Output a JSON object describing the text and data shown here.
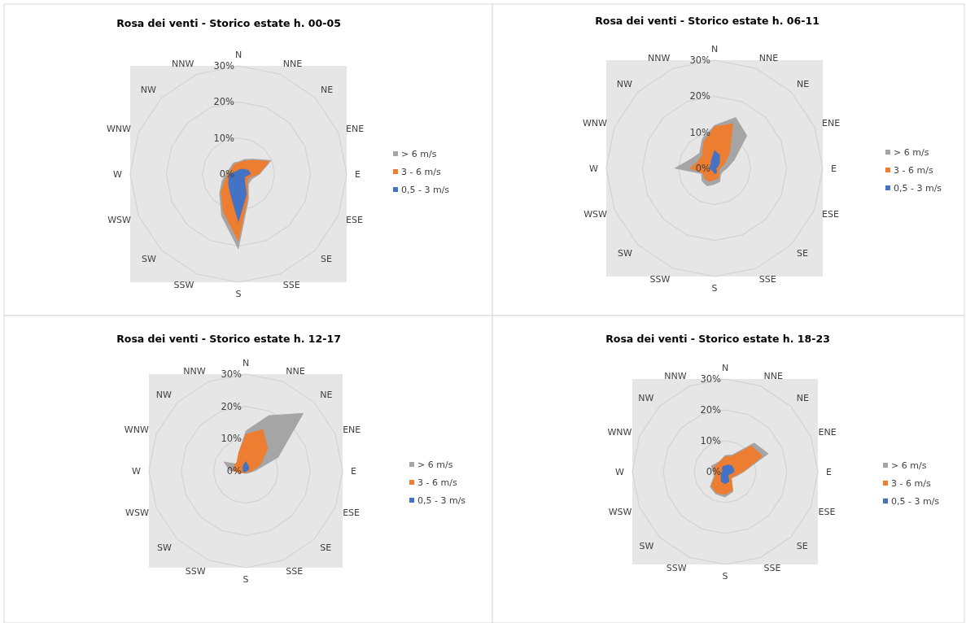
{
  "chart_data": [
    {
      "type": "radar",
      "title": "Rosa dei venti - Storico estate h. 00-05",
      "categories": [
        "N",
        "NNE",
        "NE",
        "ENE",
        "E",
        "ESE",
        "SE",
        "SSE",
        "S",
        "SSW",
        "SW",
        "WSW",
        "W",
        "WNW",
        "NW",
        "NNW"
      ],
      "ylim": [
        0,
        30
      ],
      "yticks": [
        {
          "value": 0,
          "label": "0%"
        },
        {
          "value": 10,
          "label": "10%"
        },
        {
          "value": 20,
          "label": "20%"
        },
        {
          "value": 30,
          "label": "30%"
        }
      ],
      "grid": true,
      "legend": "right",
      "series": [
        {
          "name": "> 6 m/s",
          "color": "#a5a5a5",
          "values": [
            3.5,
            4.5,
            6,
            10,
            6,
            4,
            4,
            7.5,
            21,
            12.5,
            7.5,
            5,
            3.5,
            3,
            3,
            3.5
          ]
        },
        {
          "name": "3 - 6 m/s",
          "color": "#ed7d31",
          "values": [
            3.2,
            4,
            5.5,
            9.4,
            5.7,
            3,
            3.5,
            7,
            18.8,
            11.3,
            7,
            4,
            3,
            2.5,
            2.5,
            3
          ]
        },
        {
          "name": "0,5 - 3 m/s",
          "color": "#4472c4",
          "values": [
            1.2,
            1.5,
            2,
            3,
            3.5,
            2,
            2.5,
            6,
            13.5,
            6,
            4,
            3,
            2.5,
            1.5,
            1,
            1
          ]
        }
      ]
    },
    {
      "type": "radar",
      "title": "Rosa dei venti - Storico estate h. 06-11",
      "categories": [
        "N",
        "NNE",
        "NE",
        "ENE",
        "E",
        "ESE",
        "SE",
        "SSE",
        "S",
        "SSW",
        "SW",
        "WSW",
        "W",
        "WNW",
        "NW",
        "NNW"
      ],
      "ylim": [
        0,
        30
      ],
      "yticks": [
        {
          "value": 0,
          "label": "0%"
        },
        {
          "value": 10,
          "label": "10%"
        },
        {
          "value": 20,
          "label": "20%"
        },
        {
          "value": 30,
          "label": "30%"
        }
      ],
      "grid": true,
      "legend": "right",
      "series": [
        {
          "name": "> 6 m/s",
          "color": "#a5a5a5",
          "values": [
            12,
            15.4,
            12.8,
            6,
            3.5,
            2.5,
            2.5,
            4,
            4.5,
            5.4,
            5,
            4,
            11.2,
            7,
            6,
            9
          ]
        },
        {
          "name": "3 - 6 m/s",
          "color": "#ed7d31",
          "values": [
            11.7,
            13.5,
            6,
            3,
            1.5,
            1.5,
            2,
            3,
            3.2,
            4,
            4,
            3.5,
            7,
            5,
            5,
            8
          ]
        },
        {
          "name": "0,5 - 3 m/s",
          "color": "#4472c4",
          "values": [
            5,
            4,
            2,
            1,
            0.5,
            0.5,
            1,
            1.5,
            1.5,
            1,
            1,
            1,
            1.5,
            1.5,
            1.5,
            2.5
          ]
        }
      ]
    },
    {
      "type": "radar",
      "title": "Rosa dei venti - Storico estate h. 12-17",
      "categories": [
        "N",
        "NNE",
        "NE",
        "ENE",
        "E",
        "ESE",
        "SE",
        "SSE",
        "S",
        "SSW",
        "SW",
        "WSW",
        "W",
        "WNW",
        "NW",
        "NNW"
      ],
      "ylim": [
        0,
        30
      ],
      "yticks": [
        {
          "value": 0,
          "label": "0%"
        },
        {
          "value": 10,
          "label": "10%"
        },
        {
          "value": 20,
          "label": "20%"
        },
        {
          "value": 30,
          "label": "30%"
        }
      ],
      "grid": true,
      "legend": "right",
      "series": [
        {
          "name": "> 6 m/s",
          "color": "#a5a5a5",
          "values": [
            12.5,
            18.7,
            25.4,
            10.9,
            3,
            1.5,
            1,
            1,
            0.8,
            1,
            1,
            1,
            5,
            7.5,
            3,
            6
          ]
        },
        {
          "name": "3 - 6 m/s",
          "color": "#ed7d31",
          "values": [
            11.5,
            14,
            9.7,
            5,
            2,
            1,
            0.5,
            0.5,
            0.5,
            0.5,
            1,
            2,
            4,
            4,
            4,
            6
          ]
        },
        {
          "name": "0,5 - 3 m/s",
          "color": "#4472c4",
          "values": [
            3,
            2,
            1.5,
            1,
            0.5,
            0.3,
            0.3,
            0.3,
            0.5,
            0.5,
            0.5,
            0.8,
            1,
            1,
            1.5,
            2
          ]
        }
      ]
    },
    {
      "type": "radar",
      "title": "Rosa dei venti - Storico estate h. 18-23",
      "categories": [
        "N",
        "NNE",
        "NE",
        "ENE",
        "E",
        "ESE",
        "SE",
        "SSE",
        "S",
        "SSW",
        "SW",
        "WSW",
        "W",
        "WNW",
        "NW",
        "NNW"
      ],
      "ylim": [
        0,
        30
      ],
      "yticks": [
        {
          "value": 0,
          "label": "0%"
        },
        {
          "value": 10,
          "label": "10%"
        },
        {
          "value": 20,
          "label": "20%"
        },
        {
          "value": 30,
          "label": "30%"
        }
      ],
      "grid": true,
      "legend": "right",
      "series": [
        {
          "name": "> 6 m/s",
          "color": "#a5a5a5",
          "values": [
            5.4,
            6,
            13.3,
            15.3,
            6.2,
            4,
            3,
            7,
            8.3,
            7.9,
            7,
            4,
            4,
            5,
            4,
            4
          ]
        },
        {
          "name": "3 - 6 m/s",
          "color": "#ed7d31",
          "values": [
            5,
            5.5,
            12,
            13.2,
            6,
            3.5,
            3,
            6.5,
            7.5,
            7.5,
            6.5,
            3.5,
            3.5,
            4,
            3.5,
            4
          ]
        },
        {
          "name": "0,5 - 3 m/s",
          "color": "#4472c4",
          "values": [
            2,
            2.5,
            3,
            3,
            3,
            2,
            1.5,
            3.5,
            4,
            3.5,
            2,
            1.5,
            1,
            1,
            1.5,
            2
          ]
        }
      ]
    }
  ]
}
